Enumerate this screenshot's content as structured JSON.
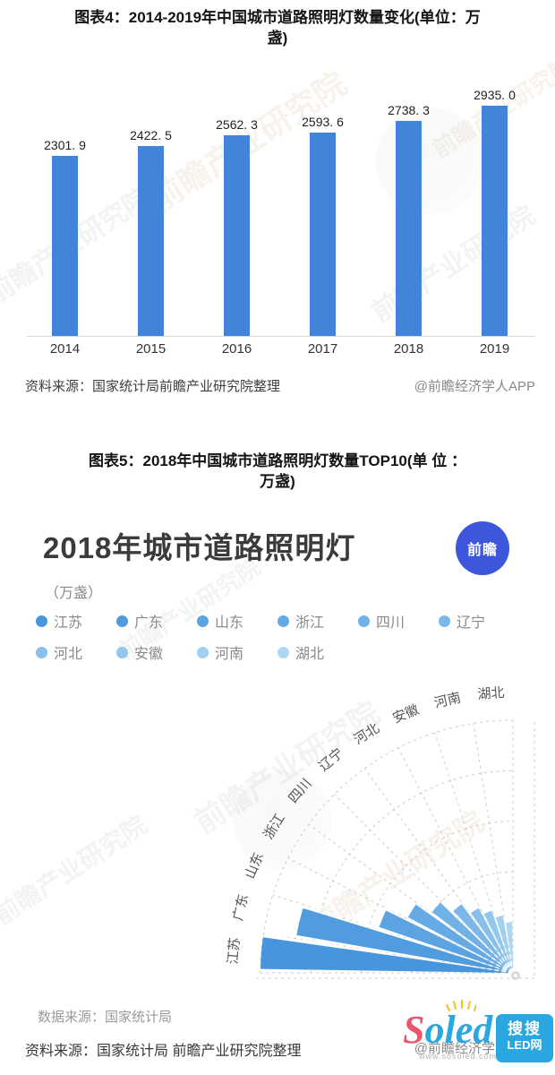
{
  "chart1": {
    "title_line1": "图表4：2014-2019年中国城市道路照明灯数量变化(单位：万",
    "title_line2": "盏)",
    "source_left": "资料来源：国家统计局前瞻产业研究院整理",
    "source_right": "@前瞻经济学人APP"
  },
  "chart2": {
    "title_line1": "图表5：2018年中国城市道路照明灯数量TOP10(单 位 ：",
    "title_line2": "万盏)",
    "heading": "2018年城市道路照明灯",
    "unit": "（万盏）",
    "badge_label": "前瞻",
    "data_source": "数据来源：国家统计局",
    "source_left": "资料来源：国家统计局 前瞻产业研究院整理",
    "source_right": "@前瞻经济学人APP"
  },
  "watermarks": {
    "diagonal_text": "前瞻产业研究院",
    "soled": {
      "s": "S",
      "oled": "oled",
      "box_line1": "搜搜",
      "box_line2": "LED网",
      "url": "www.sosoled.com"
    }
  },
  "chart_data": [
    {
      "type": "bar",
      "title": "2014-2019年中国城市道路照明灯数量变化",
      "unit": "万盏",
      "categories": [
        "2014",
        "2015",
        "2016",
        "2017",
        "2018",
        "2019"
      ],
      "values": [
        2301.9,
        2422.5,
        2562.3,
        2593.6,
        2738.3,
        2935.0
      ],
      "value_labels": [
        "2301. 9",
        "2422. 5",
        "2562. 3",
        "2593. 6",
        "2738. 3",
        "2935. 0"
      ],
      "bar_color": "#4384db",
      "xlabel": "",
      "ylabel": "",
      "ylim": [
        0,
        3200
      ],
      "grid": false,
      "legend": false,
      "axis_line_color": "#d9d9d9"
    },
    {
      "type": "bar",
      "subtype": "polar-fan-quarter",
      "title": "2018年城市道路照明灯",
      "unit": "万盏",
      "categories": [
        "江苏",
        "广东",
        "山东",
        "浙江",
        "四川",
        "辽宁",
        "河北",
        "安徽",
        "河南",
        "湖北"
      ],
      "relative_values_pct": [
        100,
        87,
        56,
        47,
        40,
        34,
        29,
        26,
        23,
        20
      ],
      "value_labels_shown": false,
      "colors": [
        "#4795dc",
        "#519cdf",
        "#5ba3e1",
        "#65aae4",
        "#70b1e6",
        "#7bb8e9",
        "#87c0eb",
        "#93c7ee",
        "#a0cff1",
        "#aed7f4"
      ],
      "angle_start_deg": 180,
      "angle_end_deg": 90,
      "grid": "dashed polar rings and radial lines",
      "grid_color": "#cccccc",
      "legend_position": "top"
    }
  ]
}
